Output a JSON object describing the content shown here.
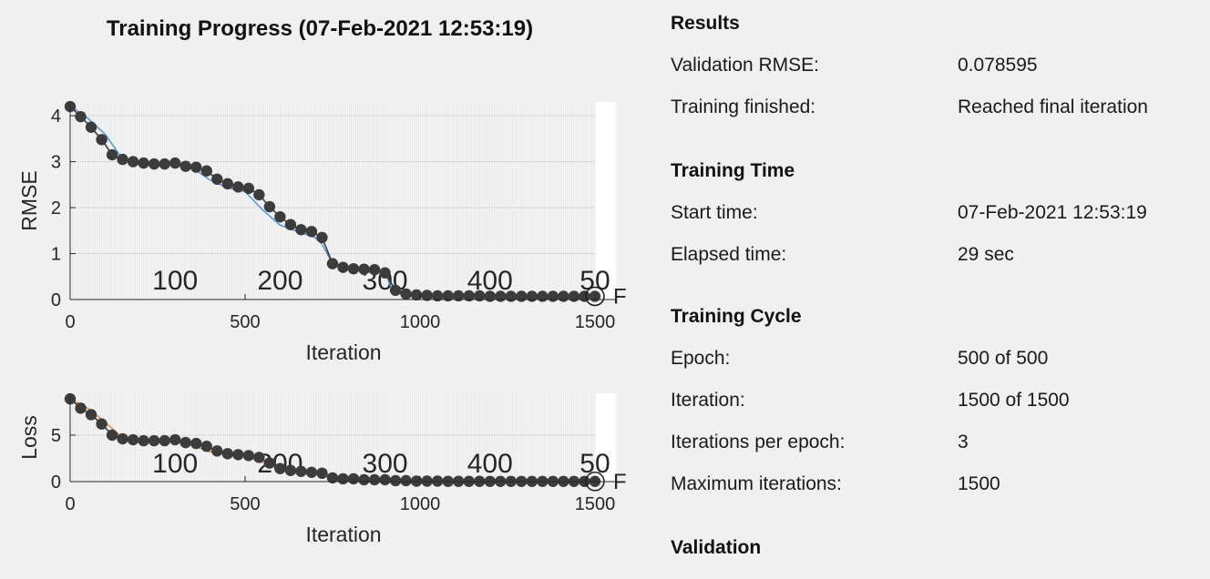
{
  "title": "Training Progress (07-Feb-2021 12:53:19)",
  "chart_data": [
    {
      "type": "line",
      "ylabel": "RMSE",
      "xlabel": "Iteration",
      "xlim": [
        0,
        1560
      ],
      "ylim": [
        0,
        4.3
      ],
      "xticks": [
        "0",
        "500",
        "1000",
        "1500"
      ],
      "yticks": [
        "0",
        "1",
        "2",
        "3",
        "4"
      ],
      "epoch_labels": [
        "100",
        "200",
        "300",
        "400",
        "50"
      ],
      "final_marker_label": "F",
      "series": [
        {
          "color": "#4a90d9",
          "x": [
            0,
            50,
            100,
            150,
            200,
            250,
            300,
            350,
            400,
            450,
            500,
            550,
            600,
            650,
            700,
            720,
            750,
            800,
            850,
            900,
            920,
            950,
            1000,
            1100,
            1200,
            1300,
            1400,
            1500
          ],
          "y": [
            4.22,
            3.95,
            3.6,
            3.05,
            2.97,
            2.96,
            2.93,
            2.86,
            2.6,
            2.43,
            2.35,
            1.95,
            1.62,
            1.48,
            1.35,
            1.2,
            0.78,
            0.7,
            0.66,
            0.6,
            0.2,
            0.1,
            0.08,
            0.07,
            0.07,
            0.06,
            0.06,
            0.06
          ]
        },
        {
          "color": "#3c3c3c",
          "x": [
            0,
            30,
            60,
            90,
            120,
            150,
            180,
            210,
            240,
            270,
            300,
            330,
            360,
            390,
            420,
            450,
            480,
            510,
            540,
            570,
            600,
            630,
            660,
            690,
            720,
            750,
            780,
            810,
            840,
            870,
            900,
            930,
            960,
            990,
            1020,
            1050,
            1080,
            1110,
            1140,
            1170,
            1200,
            1230,
            1260,
            1290,
            1320,
            1350,
            1380,
            1410,
            1440,
            1470,
            1500
          ],
          "y": [
            4.2,
            3.98,
            3.75,
            3.48,
            3.15,
            3.05,
            3.0,
            2.97,
            2.95,
            2.95,
            2.97,
            2.9,
            2.88,
            2.8,
            2.62,
            2.52,
            2.45,
            2.42,
            2.28,
            2.02,
            1.8,
            1.63,
            1.52,
            1.48,
            1.35,
            0.78,
            0.7,
            0.67,
            0.66,
            0.65,
            0.58,
            0.2,
            0.12,
            0.1,
            0.09,
            0.08,
            0.08,
            0.08,
            0.08,
            0.08,
            0.07,
            0.07,
            0.07,
            0.07,
            0.07,
            0.07,
            0.07,
            0.07,
            0.07,
            0.07,
            0.07
          ]
        }
      ]
    },
    {
      "type": "line",
      "ylabel": "Loss",
      "xlabel": "Iteration",
      "xlim": [
        0,
        1560
      ],
      "ylim": [
        0,
        9.5
      ],
      "xticks": [
        "0",
        "500",
        "1000",
        "1500"
      ],
      "yticks": [
        "0",
        "5"
      ],
      "epoch_labels": [
        "100",
        "200",
        "300",
        "400",
        "50"
      ],
      "final_marker_label": "F",
      "series": [
        {
          "color": "#e0823a",
          "x": [
            0,
            50,
            100,
            150,
            200,
            250,
            300,
            350,
            400,
            450,
            500,
            550,
            600,
            650,
            700,
            750,
            800,
            900,
            1000,
            1200,
            1500
          ],
          "y": [
            8.9,
            7.9,
            6.4,
            4.7,
            4.4,
            4.4,
            4.3,
            3.9,
            3.2,
            2.9,
            2.7,
            2.1,
            1.4,
            1.1,
            0.9,
            0.3,
            0.2,
            0.15,
            0.05,
            0.02,
            0.01
          ]
        },
        {
          "color": "#3c3c3c",
          "x": [
            0,
            30,
            60,
            90,
            120,
            150,
            180,
            210,
            240,
            270,
            300,
            330,
            360,
            390,
            420,
            450,
            480,
            510,
            540,
            570,
            600,
            630,
            660,
            690,
            720,
            750,
            780,
            810,
            840,
            870,
            900,
            930,
            960,
            990,
            1020,
            1050,
            1080,
            1110,
            1140,
            1170,
            1200,
            1230,
            1260,
            1290,
            1320,
            1350,
            1380,
            1410,
            1440,
            1470,
            1500
          ],
          "y": [
            8.9,
            7.9,
            7.2,
            6.2,
            5.0,
            4.6,
            4.5,
            4.4,
            4.4,
            4.4,
            4.5,
            4.2,
            4.1,
            3.8,
            3.3,
            3.0,
            2.9,
            2.8,
            2.6,
            2.0,
            1.4,
            1.2,
            1.1,
            1.0,
            0.9,
            0.4,
            0.3,
            0.3,
            0.2,
            0.2,
            0.2,
            0.1,
            0.1,
            0.05,
            0.05,
            0.05,
            0.03,
            0.03,
            0.03,
            0.03,
            0.02,
            0.02,
            0.02,
            0.02,
            0.02,
            0.02,
            0.02,
            0.02,
            0.02,
            0.02,
            0.02
          ]
        }
      ]
    }
  ],
  "info_panel": {
    "results": {
      "heading": "Results",
      "rows": [
        {
          "label": "Validation RMSE:",
          "value": "0.078595"
        },
        {
          "label": "Training finished:",
          "value": "Reached final iteration"
        }
      ]
    },
    "training_time": {
      "heading": "Training Time",
      "rows": [
        {
          "label": "Start time:",
          "value": "07-Feb-2021 12:53:19"
        },
        {
          "label": "Elapsed time:",
          "value": "29 sec"
        }
      ]
    },
    "training_cycle": {
      "heading": "Training Cycle",
      "rows": [
        {
          "label": "Epoch:",
          "value": "500 of 500"
        },
        {
          "label": "Iteration:",
          "value": "1500 of 1500"
        },
        {
          "label": "Iterations per epoch:",
          "value": "3"
        },
        {
          "label": "Maximum iterations:",
          "value": "1500"
        }
      ]
    },
    "validation": {
      "heading": "Validation"
    }
  }
}
